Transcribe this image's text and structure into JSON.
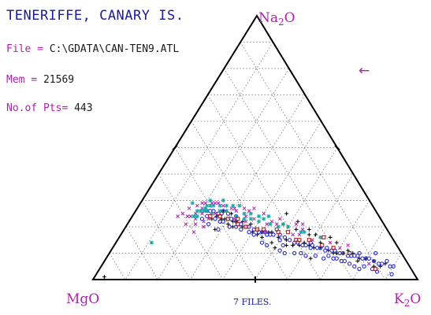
{
  "header": {
    "title": "TENERIFFE, CANARY IS.",
    "file_label": "File =",
    "file_value": "C:\\GDATA\\CAN-TEN9.ATL",
    "mem_label": "Mem =",
    "mem_value": "21569",
    "pts_label": "No.of Pts=",
    "pts_value": "443",
    "arrow": "←"
  },
  "footer": {
    "files_label": "7 FILES."
  },
  "chart_data": {
    "type": "scatter",
    "subtype": "ternary",
    "vertices": {
      "top": "Na2O",
      "left": "MgO",
      "right": "K2O"
    },
    "grid": true,
    "grid_step": 0.1,
    "point_count": 443,
    "colors": {
      "axis": "#000000",
      "grid": "#666666",
      "vertex_label": "#b01fb0",
      "title": "#1a1a9a"
    },
    "series": [
      {
        "marker": "plus",
        "color": "#000000",
        "points": [
          [
            0.07,
            0.87
          ],
          [
            0.1,
            0.83
          ],
          [
            0.14,
            0.78
          ],
          [
            0.18,
            0.72
          ],
          [
            0.22,
            0.67
          ],
          [
            0.26,
            0.62
          ],
          [
            0.3,
            0.57
          ],
          [
            0.33,
            0.52
          ],
          [
            0.36,
            0.46
          ],
          [
            0.3,
            0.5
          ],
          [
            0.24,
            0.57
          ],
          [
            0.16,
            0.73
          ],
          [
            0.12,
            0.8
          ],
          [
            0.2,
            0.7
          ],
          [
            0.27,
            0.6
          ],
          [
            0.35,
            0.49
          ],
          [
            0.4,
            0.44
          ],
          [
            0.42,
            0.4
          ],
          [
            0.44,
            0.36
          ],
          [
            0.46,
            0.32
          ],
          [
            0.47,
            0.27
          ],
          [
            0.45,
            0.33
          ],
          [
            0.41,
            0.42
          ],
          [
            0.38,
            0.48
          ],
          [
            0.32,
            0.55
          ],
          [
            0.25,
            0.58
          ],
          [
            0.19,
            0.65
          ],
          [
            0.31,
            0.48
          ],
          [
            0.28,
            0.53
          ],
          [
            0.23,
            0.63
          ],
          [
            0.48,
            0.29
          ],
          [
            0.5,
            0.26
          ],
          [
            0.39,
            0.43
          ],
          [
            0.43,
            0.35
          ],
          [
            0.52,
            0.25
          ],
          [
            0.49,
            0.28
          ],
          [
            0.34,
            0.53
          ],
          [
            0.37,
            0.45
          ],
          [
            0.28,
            0.58
          ],
          [
            0.21,
            0.69
          ],
          [
            0.15,
            0.75
          ],
          [
            0.11,
            0.84
          ],
          [
            0.09,
            0.86
          ],
          [
            0.45,
            0.3
          ],
          [
            0.47,
            0.33
          ],
          [
            0.41,
            0.38
          ],
          [
            0.38,
            0.5
          ],
          [
            0.18,
            0.68
          ],
          [
            0.53,
            0.28
          ],
          [
            0.48,
            0.31
          ],
          [
            0.28,
            0.47
          ],
          [
            0.26,
            0.52
          ],
          [
            0.23,
            0.6
          ],
          [
            0.29,
            0.63
          ],
          [
            0.32,
            0.55
          ],
          [
            0.24,
            0.64
          ],
          [
            0.15,
            0.78
          ],
          [
            0.96,
            0.03
          ]
        ]
      },
      {
        "marker": "circle",
        "color": "#2a2ad0",
        "points": [
          [
            0.05,
            0.9
          ],
          [
            0.08,
            0.86
          ],
          [
            0.11,
            0.81
          ],
          [
            0.15,
            0.76
          ],
          [
            0.19,
            0.71
          ],
          [
            0.23,
            0.66
          ],
          [
            0.27,
            0.61
          ],
          [
            0.31,
            0.55
          ],
          [
            0.35,
            0.5
          ],
          [
            0.38,
            0.45
          ],
          [
            0.41,
            0.4
          ],
          [
            0.44,
            0.35
          ],
          [
            0.47,
            0.3
          ],
          [
            0.49,
            0.26
          ],
          [
            0.51,
            0.23
          ],
          [
            0.48,
            0.27
          ],
          [
            0.43,
            0.37
          ],
          [
            0.4,
            0.42
          ],
          [
            0.36,
            0.47
          ],
          [
            0.33,
            0.51
          ],
          [
            0.29,
            0.58
          ],
          [
            0.25,
            0.63
          ],
          [
            0.21,
            0.68
          ],
          [
            0.17,
            0.74
          ],
          [
            0.13,
            0.79
          ],
          [
            0.09,
            0.85
          ],
          [
            0.06,
            0.89
          ],
          [
            0.5,
            0.24
          ],
          [
            0.52,
            0.22
          ],
          [
            0.46,
            0.31
          ],
          [
            0.42,
            0.38
          ],
          [
            0.37,
            0.46
          ],
          [
            0.34,
            0.49
          ],
          [
            0.3,
            0.56
          ],
          [
            0.26,
            0.61
          ],
          [
            0.22,
            0.66
          ],
          [
            0.18,
            0.72
          ],
          [
            0.14,
            0.77
          ],
          [
            0.1,
            0.83
          ],
          [
            0.45,
            0.33
          ],
          [
            0.39,
            0.43
          ],
          [
            0.32,
            0.53
          ],
          [
            0.28,
            0.59
          ],
          [
            0.24,
            0.64
          ],
          [
            0.2,
            0.69
          ],
          [
            0.16,
            0.75
          ],
          [
            0.12,
            0.8
          ],
          [
            0.53,
            0.23
          ],
          [
            0.49,
            0.29
          ],
          [
            0.46,
            0.34
          ],
          [
            0.43,
            0.39
          ],
          [
            0.41,
            0.45
          ],
          [
            0.37,
            0.52
          ],
          [
            0.33,
            0.57
          ],
          [
            0.26,
            0.6
          ],
          [
            0.22,
            0.7
          ],
          [
            0.19,
            0.74
          ],
          [
            0.16,
            0.8
          ],
          [
            0.11,
            0.86
          ],
          [
            0.07,
            0.91
          ],
          [
            0.5,
            0.28
          ],
          [
            0.47,
            0.27
          ],
          [
            0.44,
            0.32
          ],
          [
            0.42,
            0.41
          ],
          [
            0.35,
            0.52
          ],
          [
            0.31,
            0.59
          ],
          [
            0.27,
            0.64
          ],
          [
            0.23,
            0.68
          ],
          [
            0.2,
            0.73
          ],
          [
            0.14,
            0.81
          ],
          [
            0.55,
            0.22
          ],
          [
            0.51,
            0.26
          ],
          [
            0.48,
            0.32
          ],
          [
            0.4,
            0.47
          ],
          [
            0.36,
            0.54
          ],
          [
            0.18,
            0.76
          ],
          [
            0.12,
            0.84
          ],
          [
            0.54,
            0.25
          ],
          [
            0.52,
            0.29
          ],
          [
            0.45,
            0.36
          ],
          [
            0.3,
            0.61
          ],
          [
            0.25,
            0.67
          ],
          [
            0.17,
            0.78
          ],
          [
            0.46,
            0.29
          ],
          [
            0.38,
            0.44
          ],
          [
            0.34,
            0.47
          ],
          [
            0.21,
            0.71
          ],
          [
            0.13,
            0.77
          ],
          [
            0.08,
            0.82
          ],
          [
            0.06,
            0.87
          ]
        ]
      },
      {
        "marker": "x",
        "color": "#b01fb0",
        "points": [
          [
            0.12,
            0.82
          ],
          [
            0.25,
            0.6
          ],
          [
            0.3,
            0.53
          ],
          [
            0.38,
            0.44
          ],
          [
            0.42,
            0.36
          ],
          [
            0.45,
            0.32
          ],
          [
            0.5,
            0.25
          ],
          [
            0.53,
            0.24
          ],
          [
            0.55,
            0.23
          ],
          [
            0.41,
            0.35
          ],
          [
            0.36,
            0.43
          ],
          [
            0.28,
            0.55
          ],
          [
            0.2,
            0.66
          ],
          [
            0.15,
            0.72
          ],
          [
            0.47,
            0.24
          ],
          [
            0.49,
            0.22
          ],
          [
            0.51,
            0.2
          ],
          [
            0.43,
            0.3
          ],
          [
            0.35,
            0.4
          ],
          [
            0.27,
            0.52
          ],
          [
            0.33,
            0.46
          ],
          [
            0.39,
            0.38
          ],
          [
            0.44,
            0.29
          ],
          [
            0.52,
            0.19
          ],
          [
            0.54,
            0.21
          ],
          [
            0.56,
            0.24
          ],
          [
            0.46,
            0.26
          ],
          [
            0.57,
            0.2
          ],
          [
            0.58,
            0.21
          ],
          [
            0.34,
            0.44
          ],
          [
            0.26,
            0.55
          ],
          [
            0.4,
            0.33
          ],
          [
            0.59,
            0.17
          ],
          [
            0.56,
            0.19
          ],
          [
            0.6,
            0.22
          ],
          [
            0.54,
            0.18
          ],
          [
            0.43,
            0.31
          ],
          [
            0.48,
            0.23
          ],
          [
            0.6,
            0.15
          ],
          [
            0.57,
            0.16
          ],
          [
            0.37,
            0.36
          ],
          [
            0.25,
            0.54
          ],
          [
            0.31,
            0.46
          ],
          [
            0.18,
            0.7
          ],
          [
            0.46,
            0.28
          ],
          [
            0.39,
            0.35
          ],
          [
            0.53,
            0.2
          ],
          [
            0.62,
            0.14
          ],
          [
            0.58,
            0.18
          ],
          [
            0.61,
            0.18
          ]
        ]
      },
      {
        "marker": "asterisk",
        "color": "#1fa7a7",
        "points": [
          [
            0.22,
            0.62
          ],
          [
            0.27,
            0.55
          ],
          [
            0.33,
            0.47
          ],
          [
            0.38,
            0.4
          ],
          [
            0.42,
            0.35
          ],
          [
            0.46,
            0.28
          ],
          [
            0.49,
            0.23
          ],
          [
            0.52,
            0.21
          ],
          [
            0.4,
            0.37
          ],
          [
            0.35,
            0.44
          ],
          [
            0.3,
            0.5
          ],
          [
            0.44,
            0.32
          ],
          [
            0.48,
            0.26
          ],
          [
            0.51,
            0.24
          ],
          [
            0.45,
            0.27
          ],
          [
            0.5,
            0.22
          ],
          [
            0.54,
            0.2
          ],
          [
            0.36,
            0.41
          ],
          [
            0.41,
            0.34
          ],
          [
            0.47,
            0.25
          ],
          [
            0.55,
            0.19
          ],
          [
            0.53,
            0.21
          ],
          [
            0.39,
            0.36
          ],
          [
            0.43,
            0.29
          ],
          [
            0.45,
            0.25
          ],
          [
            0.51,
            0.21
          ],
          [
            0.57,
            0.19
          ],
          [
            0.34,
            0.42
          ],
          [
            0.31,
            0.48
          ],
          [
            0.26,
            0.56
          ],
          [
            0.56,
            0.2
          ],
          [
            0.49,
            0.21
          ],
          [
            0.52,
            0.22
          ],
          [
            0.37,
            0.39
          ],
          [
            0.41,
            0.31
          ],
          [
            0.55,
            0.16
          ],
          [
            0.75,
            0.11
          ]
        ]
      },
      {
        "marker": "square",
        "color": "#b02020",
        "points": [
          [
            0.16,
            0.74
          ],
          [
            0.23,
            0.64
          ],
          [
            0.29,
            0.56
          ],
          [
            0.34,
            0.48
          ],
          [
            0.4,
            0.41
          ],
          [
            0.45,
            0.34
          ],
          [
            0.49,
            0.27
          ],
          [
            0.44,
            0.33
          ],
          [
            0.38,
            0.43
          ],
          [
            0.26,
            0.59
          ],
          [
            0.2,
            0.68
          ],
          [
            0.31,
            0.51
          ],
          [
            0.47,
            0.3
          ],
          [
            0.52,
            0.24
          ],
          [
            0.43,
            0.37
          ],
          [
            0.3,
            0.55
          ],
          [
            0.21,
            0.63
          ],
          [
            0.11,
            0.85
          ]
        ]
      }
    ]
  }
}
